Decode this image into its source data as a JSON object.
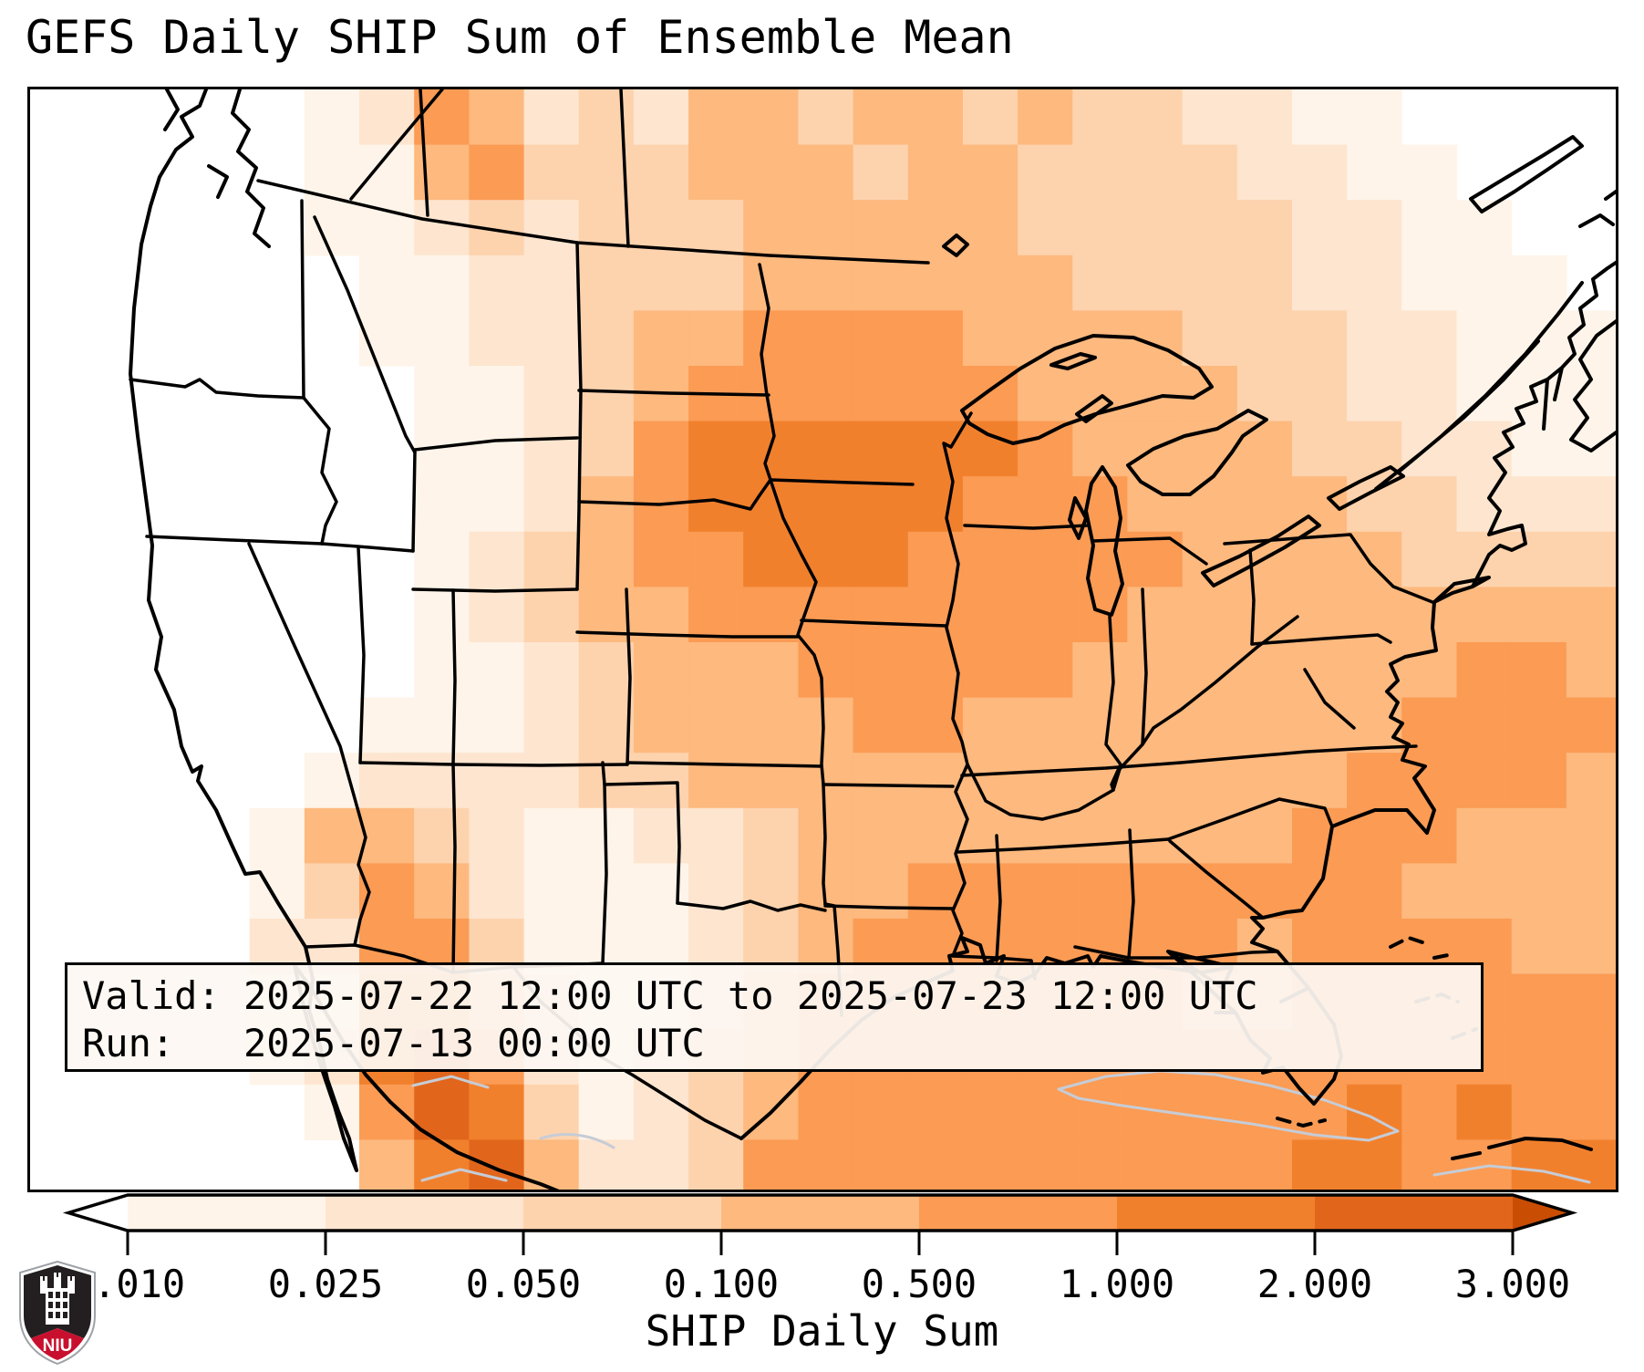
{
  "title": "GEFS Daily SHIP Sum of Ensemble Mean",
  "info_box": {
    "line1": "Valid: 2025-07-22 12:00 UTC to 2025-07-23 12:00 UTC",
    "line2": "Run:   2025-07-13 00:00 UTC"
  },
  "colorbar": {
    "axis_label": "SHIP Daily Sum",
    "tick_labels": [
      "0.010",
      "0.025",
      "0.050",
      "0.100",
      "0.500",
      "1.000",
      "2.000",
      "3.000"
    ],
    "under_color": "#ffffff",
    "over_color": "#c94d03",
    "segment_colors": [
      "#fef4e9",
      "#fde5cf",
      "#fdd3ae",
      "#fdb97e",
      "#fb9b54",
      "#f1802d",
      "#e1661c"
    ],
    "outline_color": "#000000"
  },
  "logo": {
    "text": "NIU",
    "shield_dark": "#231f20",
    "shield_red": "#c8102e",
    "shield_border": "#9ea2a6"
  },
  "chart_data": {
    "type": "heatmap",
    "title": "GEFS Daily SHIP Sum of Ensemble Mean",
    "colorbar_label": "SHIP Daily Sum",
    "valid_period": "2025-07-22 12:00 UTC to 2025-07-23 12:00 UTC",
    "run_time": "2025-07-13 00:00 UTC",
    "level_boundaries": [
      0.01,
      0.025,
      0.05,
      0.1,
      0.5,
      1.0,
      2.0,
      3.0
    ],
    "legend_position": "bottom",
    "region": "Continental United States with southern Canada, northern Mexico, Gulf of Mexico and Cuba",
    "notes": "Level codes 0-8: 0 = below 0.010 (white), 1 = 0.010-0.025, 2 = 0.025-0.050, 3 = 0.050-0.100, 4 = 0.100-0.500, 5 = 0.500-1.000, 6 = 1.000-2.000, 7 = 2.000-3.000, 8 = above 3.000. Maximum values over Iowa/eastern Nebraska and Sierra Madre Occidental (Mexico).",
    "palette": {
      "0": "#ffffff",
      "1": "#fef4e9",
      "2": "#fde5cf",
      "3": "#fdd3ae",
      "4": "#fdb97e",
      "5": "#fb9b54",
      "6": "#f1802d",
      "7": "#e1661c",
      "8": "#c94d03"
    },
    "grid_cols": 29,
    "grid_rows": 20,
    "rows": [
      "00000125423244344343322110000",
      "00000114533344434433332211000",
      "00000112323334444433333221100",
      "00000011223334444443333221110",
      "00000011223445555444433322111",
      "00000001123455555544443322111",
      "00000001123566666654444332211",
      "00000001124566666555444433222",
      "00000001234556665555544443333",
      "00000001234455555555444444444",
      "00000001123444555554444444554",
      "00000011123444455444444445555",
      "00000122223344444444444455554",
      "00001443211223444444444555444",
      "00001354211123445555555554444",
      "00002255311123455555554555544",
      "00001166421124555555544555555",
      "00001267521234555555555555555",
      "00000157631234555555555565655",
      "00000046742235555555555665566"
    ]
  }
}
